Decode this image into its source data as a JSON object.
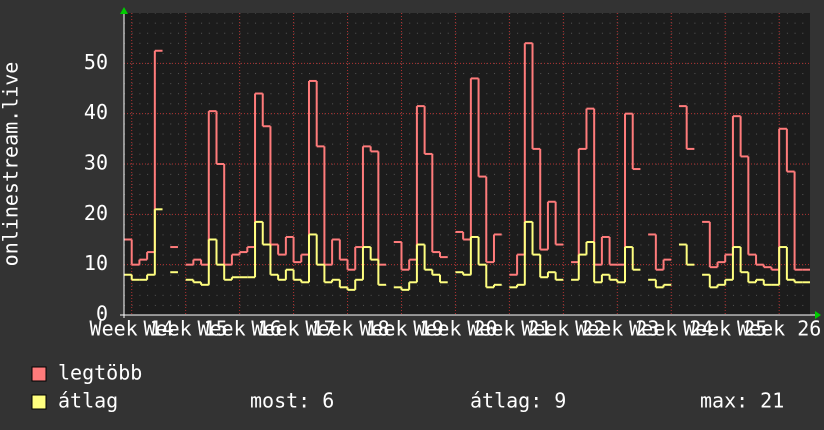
{
  "chart_data": {
    "type": "step",
    "ylabel": "onlinestream.live",
    "x": [
      0,
      1,
      2,
      3,
      4,
      5,
      6,
      7,
      8,
      9,
      10,
      11,
      12,
      13,
      14,
      15,
      16,
      17,
      18,
      19,
      20,
      21,
      22,
      23,
      24,
      25,
      26,
      27,
      28,
      29,
      30,
      31,
      32,
      33,
      34,
      35,
      36,
      37,
      38,
      39,
      40,
      41,
      42,
      43,
      44,
      45,
      46,
      47,
      48,
      49,
      50,
      51,
      52,
      53,
      54,
      55,
      56,
      57,
      58,
      59,
      60,
      61,
      62,
      63,
      64,
      65,
      66,
      67,
      68,
      69,
      70,
      71,
      72,
      73,
      74,
      75,
      76,
      77,
      78,
      79,
      80,
      81,
      82,
      83,
      84,
      85,
      86,
      87,
      88
    ],
    "xlim": [
      0,
      89
    ],
    "xticks": [
      {
        "value": 1,
        "label": "Week 14"
      },
      {
        "value": 8,
        "label": "Week 15"
      },
      {
        "value": 15,
        "label": "Week 16"
      },
      {
        "value": 22,
        "label": "Week 17"
      },
      {
        "value": 29,
        "label": "Week 18"
      },
      {
        "value": 36,
        "label": "Week 19"
      },
      {
        "value": 43,
        "label": "Week 20"
      },
      {
        "value": 50,
        "label": "Week 21"
      },
      {
        "value": 57,
        "label": "Week 22"
      },
      {
        "value": 64,
        "label": "Week 23"
      },
      {
        "value": 71,
        "label": "Week 24"
      },
      {
        "value": 78,
        "label": "Week 25"
      },
      {
        "value": 85,
        "label": "Week 26"
      }
    ],
    "ylim": [
      0,
      60
    ],
    "yticks": [
      0,
      10,
      20,
      30,
      40,
      50
    ],
    "grid": true,
    "series": [
      {
        "name": "legtöbb",
        "color": "#ff7b7b",
        "values": [
          15,
          10,
          11,
          12.5,
          52.5,
          null,
          13.5,
          null,
          10,
          11,
          10,
          40.5,
          30,
          10,
          12,
          12.5,
          13.5,
          44,
          37.5,
          14,
          12,
          15.5,
          10.5,
          12,
          46.5,
          33.5,
          10,
          15,
          11,
          9,
          13.5,
          33.5,
          32.5,
          10,
          null,
          14.5,
          9,
          11,
          41.5,
          32,
          12.5,
          11.5,
          null,
          16.5,
          15,
          47,
          27.5,
          10.5,
          16,
          null,
          8,
          12,
          54,
          33,
          13,
          22.5,
          14,
          null,
          10.5,
          33,
          41,
          10,
          15.5,
          10,
          10,
          40,
          29,
          null,
          16,
          9,
          11,
          null,
          41.5,
          33,
          null,
          18.5,
          9.5,
          10.5,
          12,
          39.5,
          31.5,
          12,
          10,
          9.5,
          9,
          37,
          28.5,
          9,
          9
        ]
      },
      {
        "name": "átlag",
        "color": "#ffff7f",
        "values": [
          8,
          7,
          7,
          8,
          21,
          null,
          8.5,
          null,
          7,
          6.5,
          6,
          15,
          10,
          7,
          7.5,
          7.5,
          7.5,
          18.5,
          14,
          8,
          7,
          9,
          7,
          6.5,
          16,
          10,
          6.5,
          7,
          5.5,
          5,
          7,
          13.5,
          11,
          6,
          null,
          5.5,
          5,
          6.5,
          14,
          9,
          8,
          6.5,
          null,
          8.5,
          8,
          15.5,
          10,
          5.5,
          6,
          null,
          5.5,
          6,
          18.5,
          12,
          7.5,
          8.5,
          7,
          null,
          7,
          12,
          14.5,
          6.5,
          8,
          7,
          6.5,
          13.5,
          9,
          null,
          7,
          5.5,
          6,
          null,
          14,
          10,
          null,
          8,
          5.5,
          6,
          7,
          13.5,
          8.5,
          6.5,
          7,
          6,
          6,
          13.5,
          7,
          6.5,
          6.5
        ]
      }
    ],
    "stats": [
      {
        "label": "most:",
        "value": 6
      },
      {
        "label": "átlag:",
        "value": 9
      },
      {
        "label": "max:",
        "value": 21
      }
    ]
  }
}
